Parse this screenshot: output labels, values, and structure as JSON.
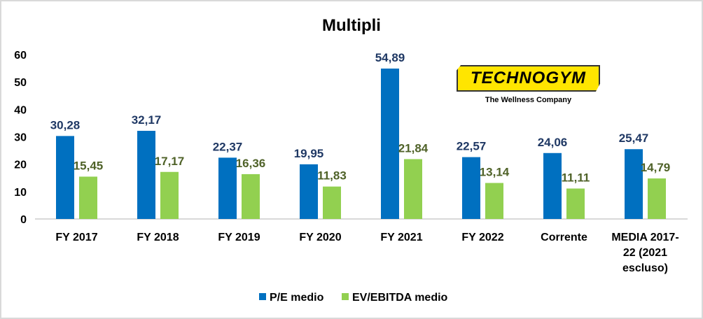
{
  "chart_data": {
    "type": "bar",
    "title": "Multipli",
    "categories": [
      "FY 2017",
      "FY 2018",
      "FY 2019",
      "FY 2020",
      "FY 2021",
      "FY 2022",
      "Corrente",
      "MEDIA 2017-22 (2021 escluso)"
    ],
    "category_lines": [
      [
        "FY 2017"
      ],
      [
        "FY 2018"
      ],
      [
        "FY 2019"
      ],
      [
        "FY 2020"
      ],
      [
        "FY 2021"
      ],
      [
        "FY 2022"
      ],
      [
        "Corrente"
      ],
      [
        "MEDIA 2017-",
        "22 (2021",
        "escluso)"
      ]
    ],
    "series": [
      {
        "name": "P/E medio",
        "color": "#0070c0",
        "label_color": "#1f3864",
        "values": [
          30.28,
          32.17,
          22.37,
          19.95,
          54.89,
          22.57,
          24.06,
          25.47
        ],
        "labels": [
          "30,28",
          "32,17",
          "22,37",
          "19,95",
          "54,89",
          "22,57",
          "24,06",
          "25,47"
        ]
      },
      {
        "name": "EV/EBITDA medio",
        "color": "#92d050",
        "label_color": "#4f6228",
        "values": [
          15.45,
          17.17,
          16.36,
          11.83,
          21.84,
          13.14,
          11.11,
          14.79
        ],
        "labels": [
          "15,45",
          "17,17",
          "16,36",
          "11,83",
          "21,84",
          "13,14",
          "11,11",
          "14,79"
        ]
      }
    ],
    "yticks": [
      "0",
      "10",
      "20",
      "30",
      "40",
      "50",
      "60"
    ],
    "ylim": [
      0,
      60
    ],
    "xlabel": "",
    "ylabel": "",
    "grid": false,
    "legend_position": "bottom"
  },
  "logo": {
    "name": "TECHNOGYM",
    "tagline": "The Wellness Company"
  }
}
